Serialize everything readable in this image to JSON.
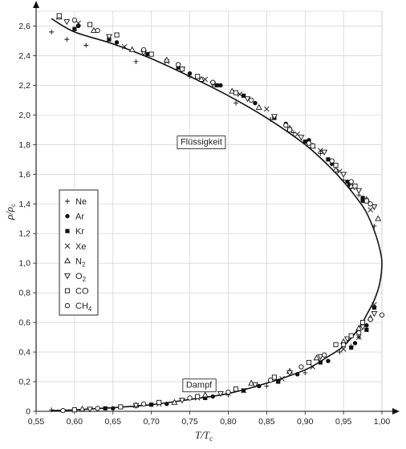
{
  "chart_data": {
    "type": "scatter",
    "title": "",
    "xlabel": "T/T",
    "xlabel_sub": "c",
    "ylabel": "ρ/ρ",
    "ylabel_sub": "c",
    "xlim": [
      0.55,
      1.0
    ],
    "ylim": [
      0,
      2.7
    ],
    "x_ticks": [
      "0,55",
      "0,60",
      "0,65",
      "0,70",
      "0,75",
      "0,80",
      "0,85",
      "0,90",
      "0,95",
      "1,00"
    ],
    "y_ticks": [
      "0",
      "0,2",
      "0,4",
      "0,6",
      "0,8",
      "1,0",
      "1,2",
      "1,4",
      "1,6",
      "1,8",
      "2,0",
      "2,2",
      "2,4",
      "2,6"
    ],
    "grid": true,
    "legend_position": "left-middle",
    "annotations": [
      {
        "text": "Flüssigkeit",
        "x": 0.765,
        "y": 1.82
      },
      {
        "text": "Dampf",
        "x": 0.762,
        "y": 0.18
      }
    ],
    "curve": {
      "liquid": [
        [
          0.57,
          2.65
        ],
        [
          0.6,
          2.56
        ],
        [
          0.65,
          2.48
        ],
        [
          0.7,
          2.38
        ],
        [
          0.75,
          2.26
        ],
        [
          0.8,
          2.13
        ],
        [
          0.85,
          1.98
        ],
        [
          0.9,
          1.8
        ],
        [
          0.93,
          1.66
        ],
        [
          0.95,
          1.55
        ],
        [
          0.97,
          1.42
        ],
        [
          0.98,
          1.34
        ],
        [
          0.99,
          1.22
        ],
        [
          0.997,
          1.1
        ],
        [
          1.0,
          1.0
        ]
      ],
      "vapor": [
        [
          1.0,
          1.0
        ],
        [
          0.997,
          0.86
        ],
        [
          0.99,
          0.75
        ],
        [
          0.98,
          0.65
        ],
        [
          0.97,
          0.56
        ],
        [
          0.95,
          0.44
        ],
        [
          0.93,
          0.37
        ],
        [
          0.9,
          0.28
        ],
        [
          0.85,
          0.19
        ],
        [
          0.8,
          0.12
        ],
        [
          0.75,
          0.08
        ],
        [
          0.7,
          0.045
        ],
        [
          0.65,
          0.025
        ],
        [
          0.6,
          0.01
        ],
        [
          0.57,
          0.005
        ]
      ]
    },
    "series": [
      {
        "name": "Ne",
        "marker": "plus",
        "points": [
          [
            0.57,
            2.56
          ],
          [
            0.59,
            2.51
          ],
          [
            0.615,
            2.47
          ],
          [
            0.68,
            2.36
          ],
          [
            0.75,
            2.26
          ],
          [
            0.81,
            2.08
          ],
          [
            0.855,
            1.97
          ],
          [
            0.885,
            1.88
          ],
          [
            0.92,
            1.74
          ],
          [
            0.95,
            1.56
          ],
          [
            0.97,
            1.46
          ],
          [
            0.99,
            1.25
          ],
          [
            0.97,
            0.5
          ],
          [
            0.96,
            0.44
          ],
          [
            0.945,
            0.4
          ],
          [
            0.9,
            0.26
          ],
          [
            0.85,
            0.17
          ],
          [
            0.8,
            0.11
          ],
          [
            0.68,
            0.045
          ],
          [
            0.57,
            0.01
          ]
        ]
      },
      {
        "name": "Ar",
        "marker": "circle-filled",
        "points": [
          [
            0.605,
            2.6
          ],
          [
            0.655,
            2.49
          ],
          [
            0.7,
            2.41
          ],
          [
            0.75,
            2.28
          ],
          [
            0.79,
            2.2
          ],
          [
            0.835,
            2.08
          ],
          [
            0.875,
            1.94
          ],
          [
            0.905,
            1.83
          ],
          [
            0.935,
            1.67
          ],
          [
            0.955,
            1.55
          ],
          [
            0.975,
            1.42
          ],
          [
            0.98,
            0.58
          ],
          [
            0.965,
            0.46
          ],
          [
            0.93,
            0.34
          ],
          [
            0.89,
            0.25
          ],
          [
            0.84,
            0.17
          ],
          [
            0.78,
            0.1
          ],
          [
            0.72,
            0.05
          ],
          [
            0.65,
            0.02
          ]
        ]
      },
      {
        "name": "Kr",
        "marker": "square-filled",
        "points": [
          [
            0.6,
            2.58
          ],
          [
            0.645,
            2.51
          ],
          [
            0.695,
            2.41
          ],
          [
            0.735,
            2.32
          ],
          [
            0.785,
            2.2
          ],
          [
            0.82,
            2.13
          ],
          [
            0.86,
            1.98
          ],
          [
            0.9,
            1.82
          ],
          [
            0.93,
            1.7
          ],
          [
            0.958,
            1.53
          ],
          [
            0.975,
            1.44
          ],
          [
            0.99,
            0.7
          ],
          [
            0.98,
            0.55
          ],
          [
            0.96,
            0.43
          ],
          [
            0.92,
            0.33
          ],
          [
            0.865,
            0.2
          ],
          [
            0.82,
            0.14
          ],
          [
            0.77,
            0.09
          ],
          [
            0.7,
            0.045
          ],
          [
            0.64,
            0.02
          ]
        ]
      },
      {
        "name": "Xe",
        "marker": "cross",
        "points": [
          [
            0.605,
            2.62
          ],
          [
            0.665,
            2.46
          ],
          [
            0.72,
            2.36
          ],
          [
            0.77,
            2.24
          ],
          [
            0.815,
            2.14
          ],
          [
            0.85,
            2.04
          ],
          [
            0.89,
            1.87
          ],
          [
            0.92,
            1.76
          ],
          [
            0.945,
            1.62
          ],
          [
            0.962,
            1.51
          ],
          [
            0.985,
            1.36
          ],
          [
            0.99,
            0.72
          ],
          [
            0.97,
            0.5
          ],
          [
            0.95,
            0.42
          ],
          [
            0.91,
            0.3
          ],
          [
            0.87,
            0.22
          ],
          [
            0.82,
            0.14
          ],
          [
            0.76,
            0.09
          ],
          [
            0.71,
            0.05
          ]
        ]
      },
      {
        "name": "N2",
        "marker": "triangle-up",
        "points": [
          [
            0.58,
            2.66
          ],
          [
            0.625,
            2.57
          ],
          [
            0.675,
            2.44
          ],
          [
            0.72,
            2.37
          ],
          [
            0.765,
            2.24
          ],
          [
            0.805,
            2.16
          ],
          [
            0.84,
            2.05
          ],
          [
            0.88,
            1.91
          ],
          [
            0.91,
            1.79
          ],
          [
            0.94,
            1.63
          ],
          [
            0.96,
            1.52
          ],
          [
            0.98,
            1.43
          ],
          [
            0.995,
            1.3
          ],
          [
            0.985,
            0.63
          ],
          [
            0.97,
            0.56
          ],
          [
            0.95,
            0.47
          ],
          [
            0.915,
            0.36
          ],
          [
            0.88,
            0.27
          ],
          [
            0.83,
            0.19
          ],
          [
            0.77,
            0.11
          ],
          [
            0.73,
            0.06
          ],
          [
            0.68,
            0.04
          ],
          [
            0.61,
            0.015
          ]
        ]
      },
      {
        "name": "O2",
        "marker": "triangle-down",
        "points": [
          [
            0.59,
            2.63
          ],
          [
            0.645,
            2.53
          ],
          [
            0.69,
            2.42
          ],
          [
            0.74,
            2.31
          ],
          [
            0.78,
            2.21
          ],
          [
            0.825,
            2.11
          ],
          [
            0.86,
            1.99
          ],
          [
            0.895,
            1.85
          ],
          [
            0.925,
            1.75
          ],
          [
            0.95,
            1.6
          ],
          [
            0.97,
            1.49
          ],
          [
            0.99,
            1.38
          ],
          [
            0.99,
            0.66
          ],
          [
            0.975,
            0.57
          ],
          [
            0.955,
            0.49
          ],
          [
            0.92,
            0.37
          ],
          [
            0.88,
            0.26
          ],
          [
            0.835,
            0.18
          ],
          [
            0.79,
            0.12
          ],
          [
            0.74,
            0.075
          ],
          [
            0.68,
            0.04
          ],
          [
            0.62,
            0.015
          ]
        ]
      },
      {
        "name": "CO",
        "marker": "square-open",
        "points": [
          [
            0.58,
            2.67
          ],
          [
            0.62,
            2.61
          ],
          [
            0.655,
            2.54
          ],
          [
            0.7,
            2.41
          ],
          [
            0.74,
            2.31
          ],
          [
            0.76,
            2.26
          ],
          [
            0.81,
            2.15
          ],
          [
            0.88,
            1.9
          ],
          [
            0.91,
            1.79
          ],
          [
            0.94,
            1.66
          ],
          [
            0.965,
            1.52
          ],
          [
            0.98,
            1.42
          ],
          [
            0.975,
            0.6
          ],
          [
            0.96,
            0.51
          ],
          [
            0.94,
            0.45
          ],
          [
            0.905,
            0.33
          ],
          [
            0.86,
            0.23
          ],
          [
            0.81,
            0.15
          ],
          [
            0.76,
            0.1
          ],
          [
            0.71,
            0.06
          ],
          [
            0.66,
            0.03
          ],
          [
            0.6,
            0.01
          ]
        ]
      },
      {
        "name": "CH4",
        "marker": "circle-open",
        "points": [
          [
            0.6,
            2.64
          ],
          [
            0.63,
            2.57
          ],
          [
            0.69,
            2.44
          ],
          [
            0.735,
            2.34
          ],
          [
            0.78,
            2.22
          ],
          [
            0.83,
            2.1
          ],
          [
            0.875,
            1.93
          ],
          [
            0.905,
            1.81
          ],
          [
            0.935,
            1.69
          ],
          [
            0.96,
            1.55
          ],
          [
            0.985,
            1.4
          ],
          [
            1.0,
            0.65
          ],
          [
            0.985,
            0.62
          ],
          [
            0.97,
            0.53
          ],
          [
            0.95,
            0.45
          ],
          [
            0.925,
            0.38
          ],
          [
            0.895,
            0.3
          ],
          [
            0.855,
            0.21
          ],
          [
            0.8,
            0.13
          ],
          [
            0.75,
            0.09
          ],
          [
            0.69,
            0.05
          ],
          [
            0.63,
            0.02
          ],
          [
            0.585,
            0.005
          ]
        ]
      }
    ],
    "legend_labels": [
      {
        "text": "Ne",
        "sub": ""
      },
      {
        "text": "Ar",
        "sub": ""
      },
      {
        "text": "Kr",
        "sub": ""
      },
      {
        "text": "Xe",
        "sub": ""
      },
      {
        "text": "N",
        "sub": "2"
      },
      {
        "text": "O",
        "sub": "2"
      },
      {
        "text": "CO",
        "sub": ""
      },
      {
        "text": "CH",
        "sub": "4"
      }
    ]
  }
}
